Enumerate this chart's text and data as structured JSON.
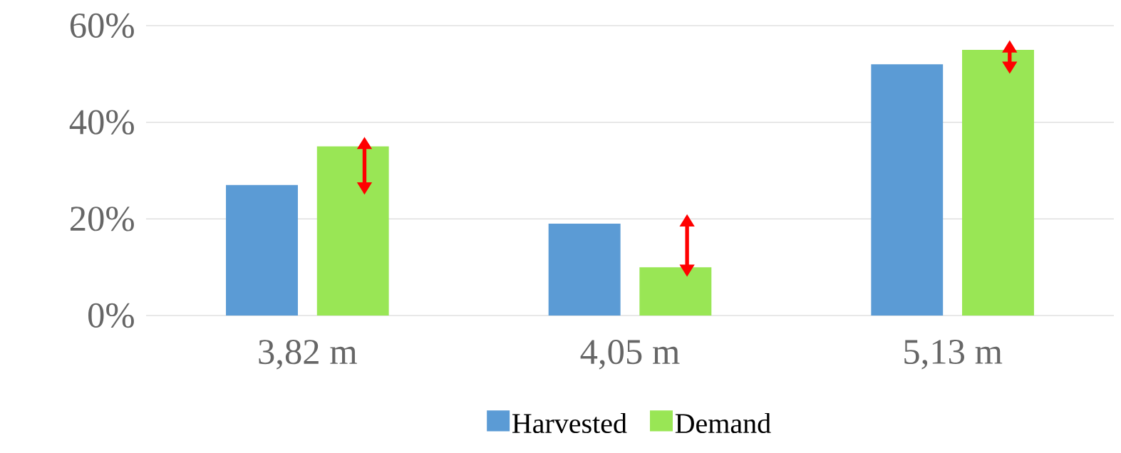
{
  "chart_data": {
    "type": "bar",
    "categories": [
      "3,82 m",
      "4,05 m",
      "5,13 m"
    ],
    "series": [
      {
        "name": "Harvested",
        "color": "#5b9bd5",
        "values": [
          27,
          19,
          52
        ]
      },
      {
        "name": "Demand",
        "color": "#99e655",
        "values": [
          35,
          10,
          55
        ]
      }
    ],
    "ylim": [
      0,
      60
    ],
    "yticks": [
      {
        "value": 0,
        "label": "0%"
      },
      {
        "value": 20,
        "label": "20%"
      },
      {
        "value": 40,
        "label": "40%"
      },
      {
        "value": 60,
        "label": "60%"
      }
    ],
    "grid": "y",
    "legend": "bottom"
  }
}
